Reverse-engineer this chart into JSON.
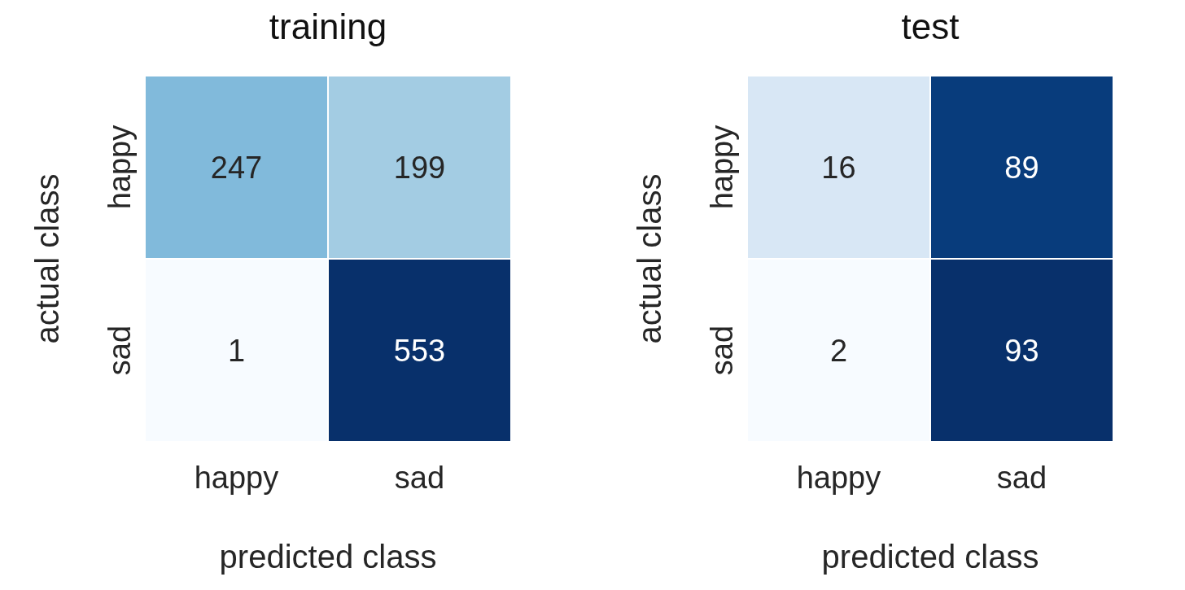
{
  "chart_data": [
    {
      "type": "heatmap",
      "title": "training",
      "xlabel": "predicted class",
      "ylabel": "actual class",
      "categories": [
        "happy",
        "sad"
      ],
      "y_categories": [
        "happy",
        "sad"
      ],
      "cells": [
        [
          247,
          199
        ],
        [
          1,
          553
        ]
      ],
      "data_labels": true
    },
    {
      "type": "heatmap",
      "title": "test",
      "xlabel": "predicted class",
      "ylabel": "actual class",
      "categories": [
        "happy",
        "sad"
      ],
      "y_categories": [
        "happy",
        "sad"
      ],
      "cells": [
        [
          16,
          89
        ],
        [
          2,
          93
        ]
      ],
      "data_labels": true
    }
  ]
}
